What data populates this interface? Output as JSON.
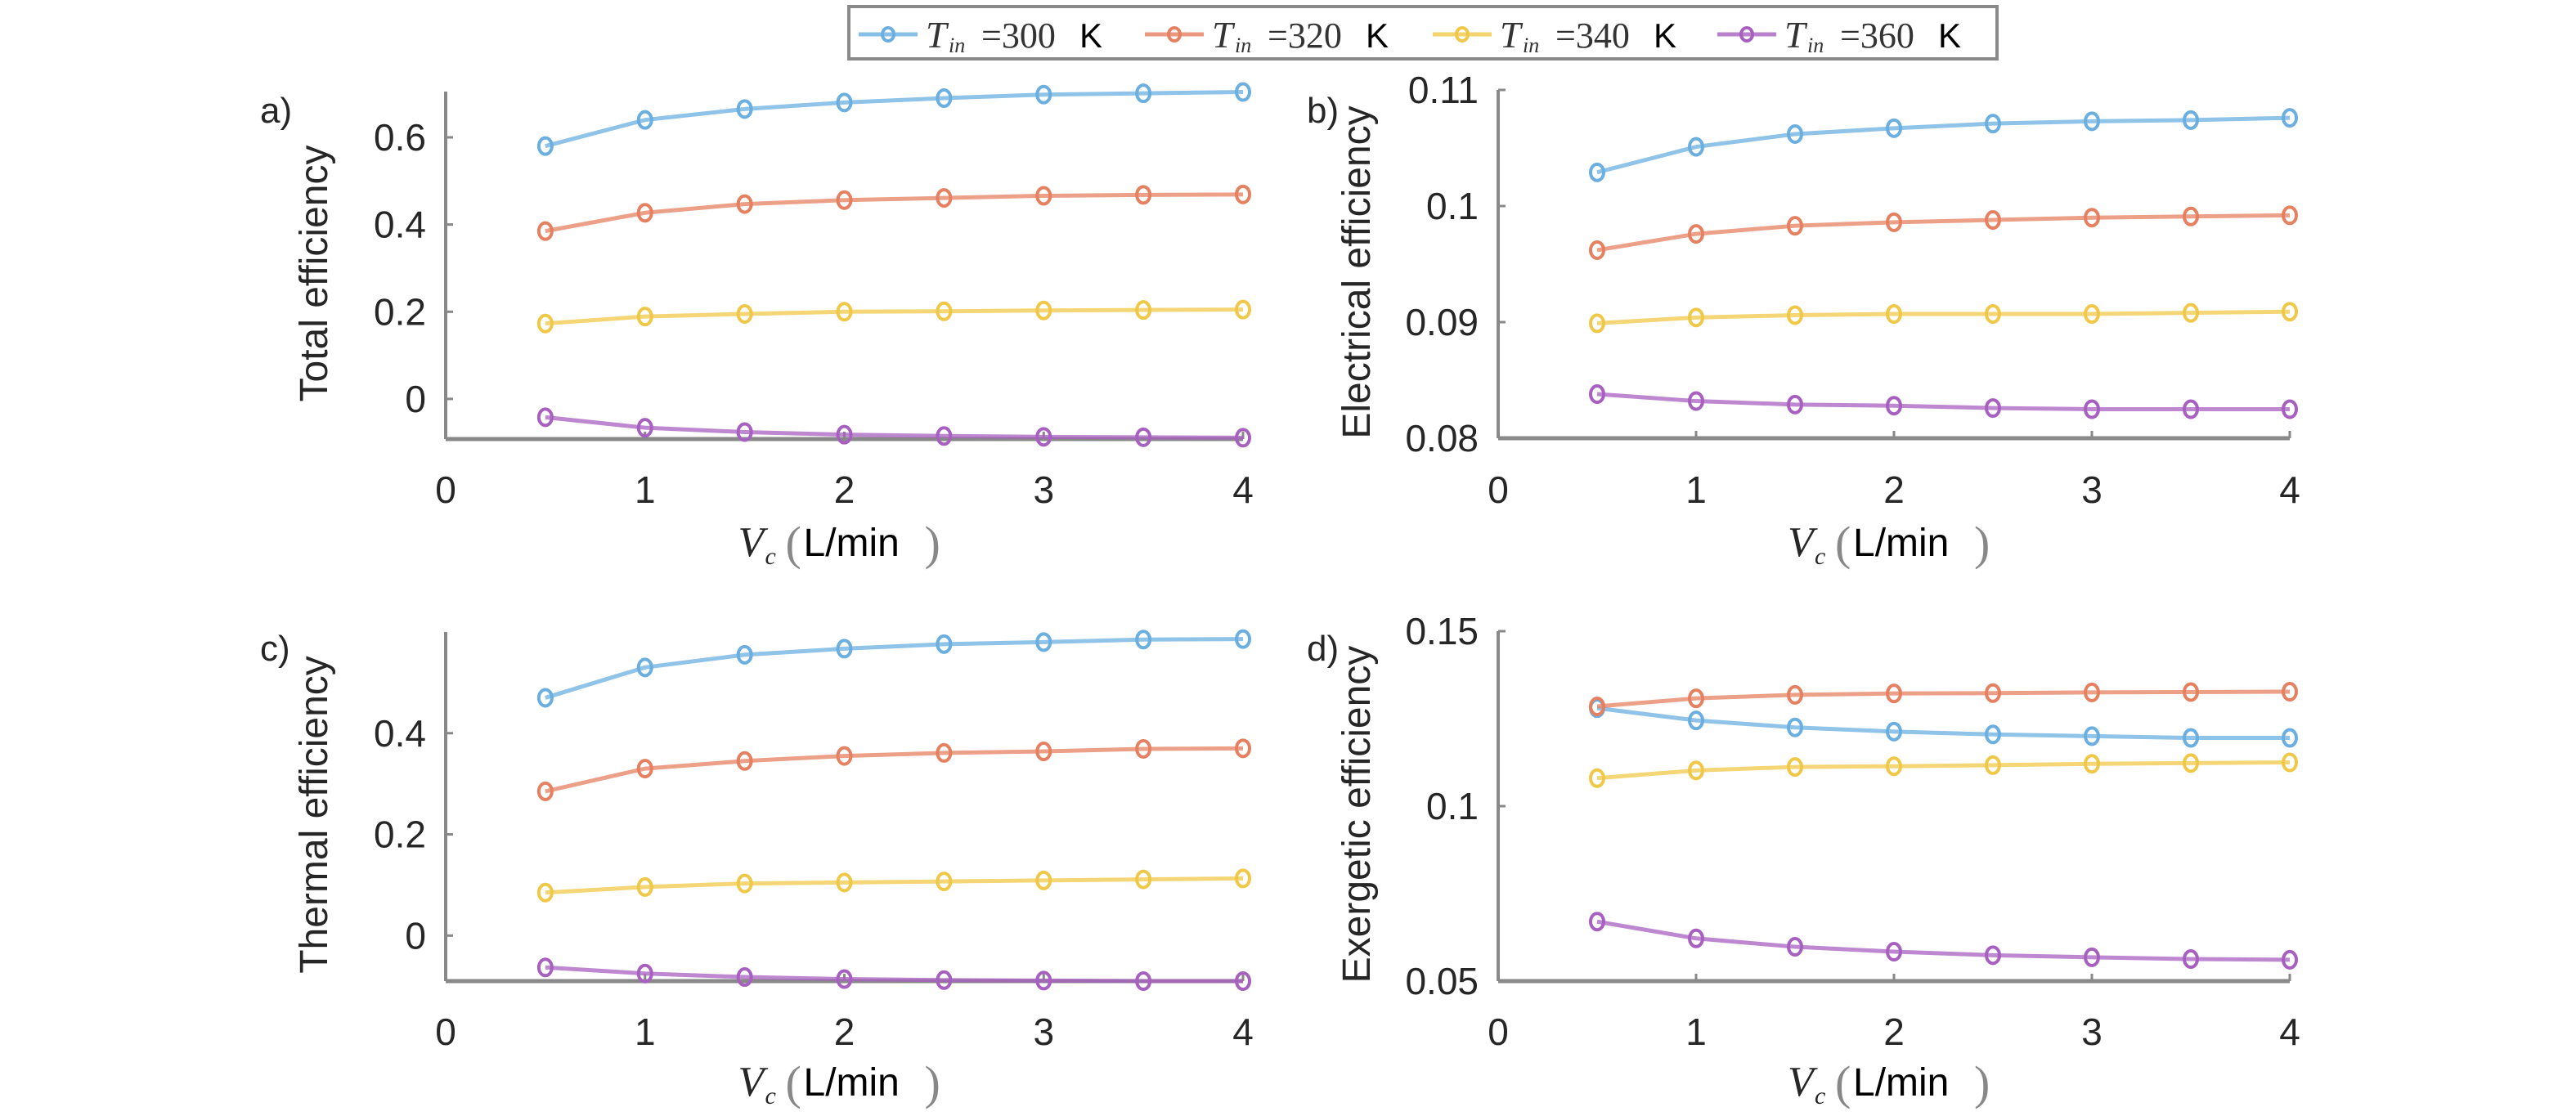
{
  "chart_data": [
    {
      "type": "line",
      "panel": "a)",
      "ylabel": "Total efficiency",
      "xlabel_var": "V",
      "xlabel_sub": "c",
      "xlabel_unit": "L/min",
      "xlim": [
        0,
        4
      ],
      "ylim": [
        -0.092,
        0.705
      ],
      "xticks": [
        0,
        1,
        2,
        3,
        4
      ],
      "xtick_labels": [
        "0",
        "1",
        "2",
        "3",
        "4"
      ],
      "yticks": [
        0,
        0.2,
        0.4,
        0.6
      ],
      "ytick_labels": [
        "0",
        "0.2",
        "0.4",
        "0.6"
      ],
      "x": [
        0.5,
        1,
        1.5,
        2,
        2.5,
        3,
        3.5,
        4
      ],
      "series": [
        {
          "name": "T_in =300 K",
          "values": [
            0.58,
            0.64,
            0.665,
            0.68,
            0.69,
            0.698,
            0.701,
            0.704
          ]
        },
        {
          "name": "T_in =320 K",
          "values": [
            0.385,
            0.427,
            0.447,
            0.456,
            0.461,
            0.466,
            0.468,
            0.469
          ]
        },
        {
          "name": "T_in =340 K",
          "values": [
            0.173,
            0.189,
            0.195,
            0.2,
            0.201,
            0.203,
            0.204,
            0.205
          ]
        },
        {
          "name": "T_in =360 K",
          "values": [
            -0.042,
            -0.066,
            -0.076,
            -0.082,
            -0.085,
            -0.087,
            -0.088,
            -0.089
          ]
        }
      ]
    },
    {
      "type": "line",
      "panel": "b)",
      "ylabel": "Electrical efficiency",
      "xlabel_var": "V",
      "xlabel_sub": "c",
      "xlabel_unit": "L/min",
      "xlim": [
        0,
        4
      ],
      "ylim": [
        0.08,
        0.11
      ],
      "xticks": [
        0,
        1,
        2,
        3,
        4
      ],
      "xtick_labels": [
        "0",
        "1",
        "2",
        "3",
        "4"
      ],
      "yticks": [
        0.08,
        0.09,
        0.1,
        0.11
      ],
      "ytick_labels": [
        "0.08",
        "0.09",
        "0.1",
        "0.11"
      ],
      "x": [
        0.5,
        1,
        1.5,
        2,
        2.5,
        3,
        3.5,
        4
      ],
      "series": [
        {
          "name": "T_in =300 K",
          "values": [
            0.1029,
            0.1051,
            0.1062,
            0.1067,
            0.1071,
            0.1073,
            0.1074,
            0.1076
          ]
        },
        {
          "name": "T_in =320 K",
          "values": [
            0.0962,
            0.0976,
            0.0983,
            0.0986,
            0.0988,
            0.099,
            0.0991,
            0.0992
          ]
        },
        {
          "name": "T_in =340 K",
          "values": [
            0.0899,
            0.0904,
            0.0906,
            0.0907,
            0.0907,
            0.0907,
            0.0908,
            0.0909
          ]
        },
        {
          "name": "T_in =360 K",
          "values": [
            0.0838,
            0.0832,
            0.0829,
            0.0828,
            0.0826,
            0.0825,
            0.0825,
            0.0825
          ]
        }
      ]
    },
    {
      "type": "line",
      "panel": "c)",
      "ylabel": "Thermal efficiency",
      "xlabel_var": "V",
      "xlabel_sub": "c",
      "xlabel_unit": "L/min",
      "xlim": [
        0,
        4
      ],
      "ylim": [
        -0.09,
        0.6
      ],
      "xticks": [
        0,
        1,
        2,
        3,
        4
      ],
      "xtick_labels": [
        "0",
        "1",
        "2",
        "3",
        "4"
      ],
      "yticks": [
        0,
        0.2,
        0.4
      ],
      "ytick_labels": [
        "0",
        "0.2",
        "0.4"
      ],
      "x": [
        0.5,
        1,
        1.5,
        2,
        2.5,
        3,
        3.5,
        4
      ],
      "series": [
        {
          "name": "T_in =300 K",
          "values": [
            0.47,
            0.53,
            0.555,
            0.567,
            0.576,
            0.58,
            0.585,
            0.586
          ]
        },
        {
          "name": "T_in =320 K",
          "values": [
            0.285,
            0.33,
            0.345,
            0.355,
            0.361,
            0.364,
            0.369,
            0.37
          ]
        },
        {
          "name": "T_in =340 K",
          "values": [
            0.085,
            0.096,
            0.103,
            0.105,
            0.107,
            0.109,
            0.111,
            0.113
          ]
        },
        {
          "name": "T_in =360 K",
          "values": [
            -0.063,
            -0.075,
            -0.082,
            -0.086,
            -0.088,
            -0.089,
            -0.09,
            -0.09
          ]
        }
      ]
    },
    {
      "type": "line",
      "panel": "d)",
      "ylabel": "Exergetic efficiency",
      "xlabel_var": "V",
      "xlabel_sub": "c",
      "xlabel_unit": "L/min",
      "xlim": [
        0,
        4
      ],
      "ylim": [
        0.05,
        0.15
      ],
      "xticks": [
        0,
        1,
        2,
        3,
        4
      ],
      "xtick_labels": [
        "0",
        "1",
        "2",
        "3",
        "4"
      ],
      "yticks": [
        0.05,
        0.1,
        0.15
      ],
      "ytick_labels": [
        "0.05",
        "0.1",
        "0.15"
      ],
      "x": [
        0.5,
        1,
        1.5,
        2,
        2.5,
        3,
        3.5,
        4
      ],
      "series": [
        {
          "name": "T_in =300 K",
          "values": [
            0.128,
            0.1245,
            0.1225,
            0.1213,
            0.1205,
            0.12,
            0.1195,
            0.1195
          ]
        },
        {
          "name": "T_in =320 K",
          "values": [
            0.1285,
            0.1308,
            0.1318,
            0.1322,
            0.1323,
            0.1325,
            0.1326,
            0.1327
          ]
        },
        {
          "name": "T_in =340 K",
          "values": [
            0.108,
            0.1102,
            0.1112,
            0.1114,
            0.1117,
            0.1121,
            0.1123,
            0.1125
          ]
        },
        {
          "name": "T_in =360 K",
          "values": [
            0.067,
            0.0622,
            0.0598,
            0.0584,
            0.0574,
            0.0568,
            0.0563,
            0.0561
          ]
        }
      ]
    }
  ],
  "legend": {
    "items": [
      {
        "symbol": "T",
        "sub": "in",
        "value": "=300",
        "unit": "K",
        "color": "#4DBEEE"
      },
      {
        "symbol": "T",
        "sub": "in",
        "value": "=320",
        "unit": "K",
        "color": "#D95319"
      },
      {
        "symbol": "T",
        "sub": "in",
        "value": "=340",
        "unit": "K",
        "color": "#EDB120"
      },
      {
        "symbol": "T",
        "sub": "in",
        "value": "=360",
        "unit": "K",
        "color": "#9B3CB0"
      }
    ]
  },
  "colors": {
    "axis": "#888888",
    "series": [
      "#6AAFE0",
      "#E58060",
      "#F0C848",
      "#A860C0"
    ]
  }
}
